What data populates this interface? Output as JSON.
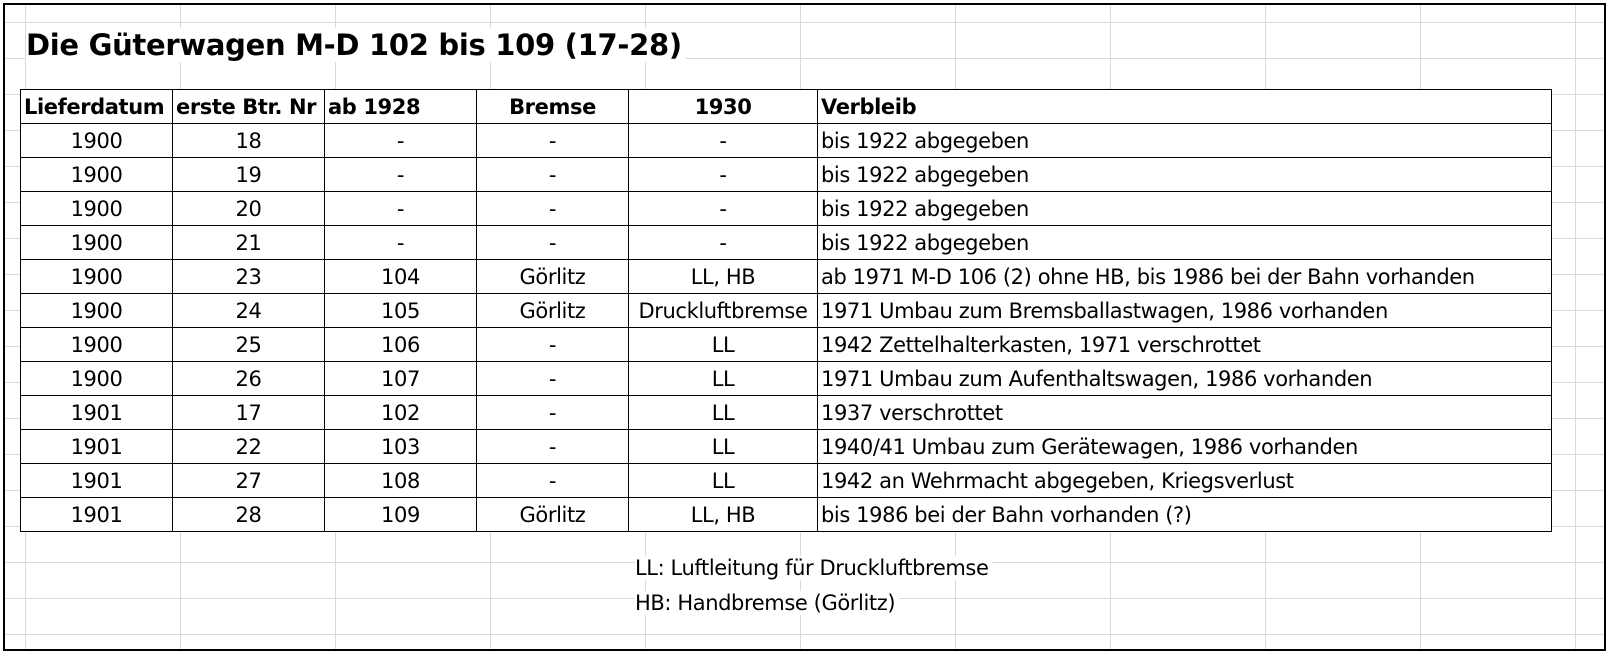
{
  "title": "Die Güterwagen M-D 102 bis 109 (17-28)",
  "columns": [
    "Lieferdatum",
    "erste Btr. Nr",
    "ab 1928",
    "Bremse",
    "1930",
    "Verbleib"
  ],
  "rows": [
    [
      "1900",
      "18",
      "-",
      "-",
      "-",
      "bis 1922 abgegeben"
    ],
    [
      "1900",
      "19",
      "-",
      "-",
      "-",
      "bis 1922 abgegeben"
    ],
    [
      "1900",
      "20",
      "-",
      "-",
      "-",
      "bis 1922 abgegeben"
    ],
    [
      "1900",
      "21",
      "-",
      "-",
      "-",
      "bis 1922 abgegeben"
    ],
    [
      "1900",
      "23",
      "104",
      "Görlitz",
      "LL, HB",
      "ab 1971 M-D 106 (2) ohne HB, bis 1986 bei der Bahn vorhanden"
    ],
    [
      "1900",
      "24",
      "105",
      "Görlitz",
      "Druckluftbremse",
      "1971 Umbau zum Bremsballastwagen, 1986 vorhanden"
    ],
    [
      "1900",
      "25",
      "106",
      "-",
      "LL",
      "1942 Zettelhalterkasten, 1971 verschrottet"
    ],
    [
      "1900",
      "26",
      "107",
      "-",
      "LL",
      "1971 Umbau zum Aufenthaltswagen, 1986 vorhanden"
    ],
    [
      "1901",
      "17",
      "102",
      "-",
      "LL",
      "1937 verschrottet"
    ],
    [
      "1901",
      "22",
      "103",
      "-",
      "LL",
      "1940/41 Umbau zum Gerätewagen, 1986 vorhanden"
    ],
    [
      "1901",
      "27",
      "108",
      "-",
      "LL",
      "1942 an Wehrmacht abgegeben, Kriegsverlust"
    ],
    [
      "1901",
      "28",
      "109",
      "Görlitz",
      "LL, HB",
      "bis 1986 bei der Bahn vorhanden (?)"
    ]
  ],
  "legend": [
    "LL: Luftleitung für Druckluftbremse",
    "HB: Handbremse (Görlitz)"
  ]
}
